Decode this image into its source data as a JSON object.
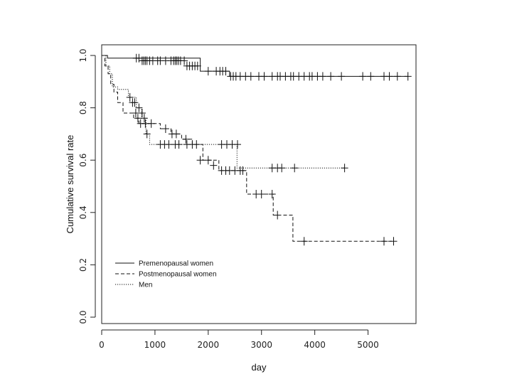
{
  "chart_data": {
    "type": "line",
    "title": "",
    "xlabel": "day",
    "ylabel": "Cumulative survival rate",
    "xlim": [
      0,
      5800
    ],
    "ylim": [
      0,
      1.0
    ],
    "x_ticks": [
      0,
      1000,
      2000,
      3000,
      4000,
      5000
    ],
    "y_ticks": [
      0.0,
      0.2,
      0.4,
      0.6,
      0.8,
      1.0
    ],
    "x_tick_labels": [
      "0",
      "1000",
      "2000",
      "3000",
      "4000",
      "5000"
    ],
    "y_tick_labels": [
      "0.0",
      "0.2",
      "0.4",
      "0.6",
      "0.8",
      "1.0"
    ],
    "grid": false,
    "legend_position": "bottom-left",
    "series": [
      {
        "name": "Premenopausal women",
        "line_style": "solid",
        "steps": [
          [
            0,
            1.0
          ],
          [
            110,
            0.99
          ],
          [
            1850,
            0.94
          ],
          [
            2400,
            0.92
          ],
          [
            5750,
            0.92
          ]
        ],
        "censored": [
          [
            650,
            0.99
          ],
          [
            700,
            0.99
          ],
          [
            760,
            0.98
          ],
          [
            790,
            0.98
          ],
          [
            820,
            0.98
          ],
          [
            850,
            0.98
          ],
          [
            900,
            0.98
          ],
          [
            960,
            0.98
          ],
          [
            1050,
            0.98
          ],
          [
            1100,
            0.98
          ],
          [
            1200,
            0.98
          ],
          [
            1300,
            0.98
          ],
          [
            1350,
            0.98
          ],
          [
            1380,
            0.98
          ],
          [
            1410,
            0.98
          ],
          [
            1440,
            0.98
          ],
          [
            1480,
            0.98
          ],
          [
            1550,
            0.98
          ],
          [
            1600,
            0.96
          ],
          [
            1650,
            0.96
          ],
          [
            1700,
            0.96
          ],
          [
            1750,
            0.96
          ],
          [
            1800,
            0.96
          ],
          [
            2000,
            0.94
          ],
          [
            2150,
            0.94
          ],
          [
            2220,
            0.94
          ],
          [
            2270,
            0.94
          ],
          [
            2330,
            0.94
          ],
          [
            2420,
            0.92
          ],
          [
            2470,
            0.92
          ],
          [
            2520,
            0.92
          ],
          [
            2600,
            0.92
          ],
          [
            2700,
            0.92
          ],
          [
            2800,
            0.92
          ],
          [
            2950,
            0.92
          ],
          [
            3050,
            0.92
          ],
          [
            3200,
            0.92
          ],
          [
            3300,
            0.92
          ],
          [
            3350,
            0.92
          ],
          [
            3450,
            0.92
          ],
          [
            3550,
            0.92
          ],
          [
            3600,
            0.92
          ],
          [
            3700,
            0.92
          ],
          [
            3800,
            0.92
          ],
          [
            3900,
            0.92
          ],
          [
            3950,
            0.92
          ],
          [
            4050,
            0.92
          ],
          [
            4150,
            0.92
          ],
          [
            4300,
            0.92
          ],
          [
            4500,
            0.92
          ],
          [
            4900,
            0.92
          ],
          [
            5050,
            0.92
          ],
          [
            5300,
            0.92
          ],
          [
            5400,
            0.92
          ],
          [
            5550,
            0.92
          ],
          [
            5750,
            0.92
          ]
        ]
      },
      {
        "name": "Postmenopausal women",
        "line_style": "dashed",
        "steps": [
          [
            0,
            1.0
          ],
          [
            60,
            0.96
          ],
          [
            120,
            0.93
          ],
          [
            170,
            0.89
          ],
          [
            230,
            0.86
          ],
          [
            300,
            0.82
          ],
          [
            400,
            0.78
          ],
          [
            600,
            0.76
          ],
          [
            700,
            0.74
          ],
          [
            1100,
            0.72
          ],
          [
            1300,
            0.7
          ],
          [
            1500,
            0.68
          ],
          [
            1700,
            0.66
          ],
          [
            1900,
            0.6
          ],
          [
            2200,
            0.56
          ],
          [
            2720,
            0.47
          ],
          [
            3220,
            0.39
          ],
          [
            3590,
            0.29
          ],
          [
            5480,
            0.29
          ]
        ],
        "censored": [
          [
            580,
            0.82
          ],
          [
            640,
            0.78
          ],
          [
            680,
            0.76
          ],
          [
            730,
            0.74
          ],
          [
            820,
            0.74
          ],
          [
            930,
            0.74
          ],
          [
            1200,
            0.72
          ],
          [
            1320,
            0.7
          ],
          [
            1400,
            0.7
          ],
          [
            1580,
            0.68
          ],
          [
            1780,
            0.66
          ],
          [
            1850,
            0.6
          ],
          [
            2000,
            0.6
          ],
          [
            2100,
            0.58
          ],
          [
            2250,
            0.56
          ],
          [
            2330,
            0.56
          ],
          [
            2400,
            0.56
          ],
          [
            2500,
            0.56
          ],
          [
            2600,
            0.56
          ],
          [
            2650,
            0.56
          ],
          [
            2900,
            0.47
          ],
          [
            3000,
            0.47
          ],
          [
            3200,
            0.47
          ],
          [
            3300,
            0.39
          ],
          [
            3800,
            0.29
          ],
          [
            5300,
            0.29
          ],
          [
            5480,
            0.29
          ]
        ]
      },
      {
        "name": "Men",
        "line_style": "dotted",
        "steps": [
          [
            0,
            1.0
          ],
          [
            80,
            0.96
          ],
          [
            150,
            0.93
          ],
          [
            200,
            0.88
          ],
          [
            300,
            0.87
          ],
          [
            500,
            0.84
          ],
          [
            650,
            0.8
          ],
          [
            750,
            0.76
          ],
          [
            830,
            0.7
          ],
          [
            900,
            0.66
          ],
          [
            2540,
            0.57
          ],
          [
            4560,
            0.57
          ]
        ],
        "censored": [
          [
            530,
            0.84
          ],
          [
            620,
            0.82
          ],
          [
            700,
            0.8
          ],
          [
            760,
            0.78
          ],
          [
            800,
            0.76
          ],
          [
            850,
            0.7
          ],
          [
            1100,
            0.66
          ],
          [
            1180,
            0.66
          ],
          [
            1260,
            0.66
          ],
          [
            1380,
            0.66
          ],
          [
            1450,
            0.66
          ],
          [
            1600,
            0.66
          ],
          [
            1700,
            0.66
          ],
          [
            2250,
            0.66
          ],
          [
            2350,
            0.66
          ],
          [
            2450,
            0.66
          ],
          [
            2550,
            0.66
          ],
          [
            3200,
            0.57
          ],
          [
            3300,
            0.57
          ],
          [
            3380,
            0.57
          ],
          [
            3620,
            0.57
          ],
          [
            4560,
            0.57
          ]
        ]
      }
    ]
  }
}
